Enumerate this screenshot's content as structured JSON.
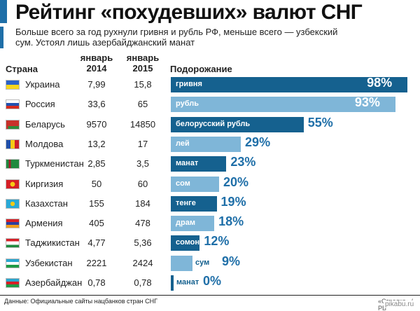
{
  "title": "Рейтинг «похудевших» валют СНГ",
  "subtitle": "Больше всего за год рухнули гривня и рубль РФ, меньше всего — узбекский сум. Устоял лишь азербайджанский манат",
  "headers": {
    "country": "Страна",
    "y2014_line1": "январь",
    "y2014_line2": "2014",
    "y2015_line1": "январь",
    "y2015_line2": "2015",
    "rise": "Подорожание"
  },
  "colors": {
    "accent": "#1f6fa8",
    "dark_bar": "#15618f",
    "light_bar": "#7fb6d8",
    "pct_text": "#1f6fa8"
  },
  "chart_data": {
    "type": "bar",
    "title": "Рейтинг «похудевших» валют СНГ",
    "xlabel": "",
    "ylabel": "Подорожание",
    "ylim": [
      0,
      100
    ],
    "categories": [
      "Украина",
      "Россия",
      "Беларусь",
      "Молдова",
      "Туркменистан",
      "Киргизия",
      "Казахстан",
      "Армения",
      "Таджикистан",
      "Узбекистан",
      "Азербайджан"
    ],
    "currencies": [
      "гривня",
      "рубль",
      "белорусский рубль",
      "лей",
      "манат",
      "сом",
      "тенге",
      "драм",
      "сомони",
      "сум",
      "манат"
    ],
    "jan2014": [
      "7,99",
      "33,6",
      "9570",
      "13,2",
      "2,85",
      "50",
      "155",
      "405",
      "4,77",
      "2221",
      "0,78"
    ],
    "jan2015": [
      "15,8",
      "65",
      "14850",
      "17",
      "3,5",
      "60",
      "184",
      "478",
      "5,36",
      "2424",
      "0,78"
    ],
    "values": [
      98,
      93,
      55,
      29,
      23,
      20,
      19,
      18,
      12,
      9,
      0
    ],
    "value_labels": [
      "98%",
      "93%",
      "55%",
      "29%",
      "23%",
      "20%",
      "19%",
      "18%",
      "12%",
      "9%",
      "0%"
    ],
    "bar_shade": [
      "dark",
      "light",
      "dark",
      "light",
      "dark",
      "light",
      "dark",
      "light",
      "dark",
      "light",
      "dark"
    ]
  },
  "flags": [
    "ukraine-flag-icon",
    "russia-flag-icon",
    "belarus-flag-icon",
    "moldova-flag-icon",
    "turkmenistan-flag-icon",
    "kyrgyzstan-flag-icon",
    "kazakhstan-flag-icon",
    "armenia-flag-icon",
    "tajikistan-flag-icon",
    "uzbekistan-flag-icon",
    "azerbaijan-flag-icon"
  ],
  "footer": "Данные: Официальные сайты нацбанков стран СНГ",
  "credit": "«Стрелка» / РБ",
  "watermark": "pikabu.ru"
}
